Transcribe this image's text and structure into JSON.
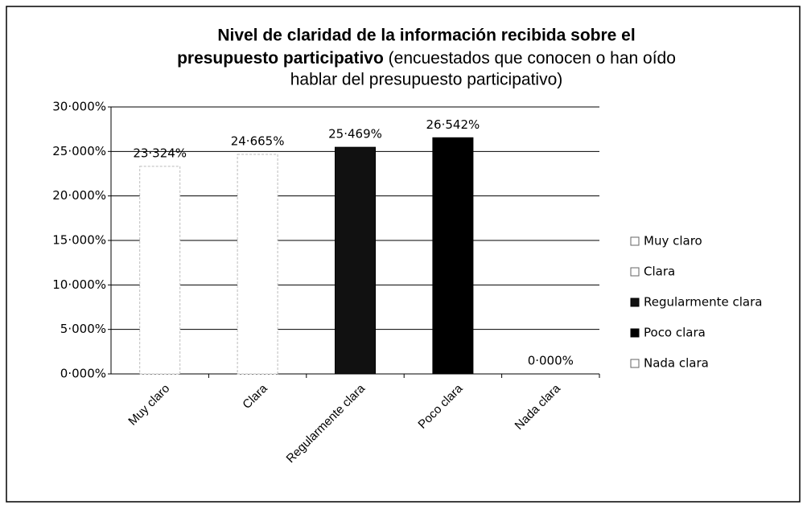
{
  "chart_data": {
    "type": "bar",
    "title": [
      "Nivel de claridad de la información recibida sobre el",
      "presupuesto participativo"
    ],
    "subtitle": [
      "(encuestados que conocen o han oído",
      "hablar del presupuesto participativo)"
    ],
    "categories": [
      "Muy claro",
      "Clara",
      "Regularmente clara",
      "Poco clara",
      "Nada clara"
    ],
    "values": [
      23.324,
      24.665,
      25.469,
      26.542,
      0
    ],
    "value_labels": [
      "23·324%",
      "24·665%",
      "25·469%",
      "26·542%",
      "0·000%"
    ],
    "colors": [
      "#ffffff",
      "#ffffff",
      "#111111",
      "#000000",
      "#ffffff"
    ],
    "ylim": [
      0,
      30
    ],
    "yticks": [
      {
        "value": 0,
        "label": "0·000%"
      },
      {
        "value": 5,
        "label": "5·000%"
      },
      {
        "value": 10,
        "label": "10·000%"
      },
      {
        "value": 15,
        "label": "15·000%"
      },
      {
        "value": 20,
        "label": "20·000%"
      },
      {
        "value": 25,
        "label": "25·000%"
      },
      {
        "value": 30,
        "label": "30·000%"
      }
    ],
    "grid": true,
    "legend": "right"
  }
}
